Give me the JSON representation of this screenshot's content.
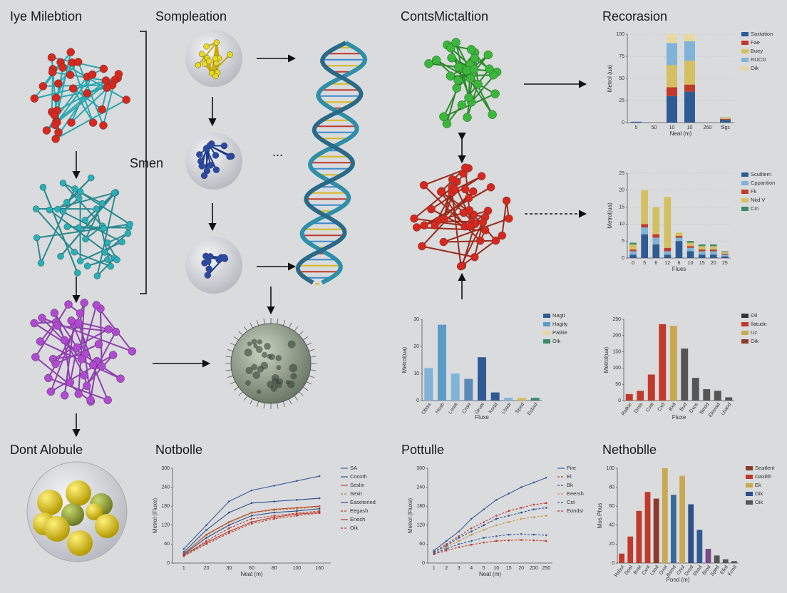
{
  "labels": {
    "panel_a": "Iye Milebtion",
    "panel_b": "Sompleation",
    "panel_c": "ContsMictaltion",
    "bracket": "Smen",
    "panel_d": "Dont Alobule",
    "ellipsis": "..."
  },
  "chart_data": [
    {
      "type": "stacked_bar",
      "title": "Recorasion",
      "y_label": "Metrol (ua)",
      "x_label": "Neal (m)",
      "categories": [
        "5",
        "50",
        "10",
        "10",
        "260",
        "5lgs"
      ],
      "ylim": [
        0,
        100
      ],
      "yticks": [
        0,
        25,
        50,
        75,
        100
      ],
      "grid": true,
      "series": [
        {
          "name": "Saxtation",
          "color": "#2e5b94",
          "values": [
            1,
            0,
            30,
            35,
            0,
            3
          ]
        },
        {
          "name": "Fae",
          "color": "#c0392b",
          "values": [
            0,
            0,
            10,
            8,
            0,
            1
          ]
        },
        {
          "name": "Buey",
          "color": "#d4c060",
          "values": [
            0,
            0,
            25,
            27,
            0,
            1
          ]
        },
        {
          "name": "RUCD",
          "color": "#7fb3d8",
          "values": [
            0,
            0,
            25,
            22,
            0,
            1
          ]
        },
        {
          "name": "Oik",
          "color": "#e8d8a0",
          "values": [
            0,
            0,
            10,
            8,
            0,
            1
          ]
        }
      ]
    },
    {
      "type": "stacked_bar",
      "y_label": "Metrol(ua)",
      "x_label": "Flues",
      "categories": [
        "0",
        "5",
        "6",
        "12",
        "6",
        "10",
        "15",
        "20",
        "25"
      ],
      "ylim": [
        0,
        25
      ],
      "yticks": [
        0,
        5,
        10,
        15,
        20,
        25
      ],
      "grid": true,
      "series": [
        {
          "name": "Scultlern",
          "color": "#2e5b94",
          "values": [
            1,
            7,
            4,
            1,
            5,
            2,
            1,
            1,
            0.5
          ]
        },
        {
          "name": "Cpparition",
          "color": "#7fb3d8",
          "values": [
            1,
            2,
            2,
            1,
            1,
            1,
            1,
            1,
            0.5
          ]
        },
        {
          "name": "Fk",
          "color": "#c0392b",
          "values": [
            0.5,
            1,
            1,
            1,
            0.5,
            0.5,
            0.5,
            0.5,
            0.3
          ]
        },
        {
          "name": "Nkd V",
          "color": "#d4c060",
          "values": [
            1.5,
            10,
            8,
            15,
            1,
            1,
            1,
            1,
            0.5
          ]
        },
        {
          "name": "Cin",
          "color": "#3a8a6a",
          "values": [
            0.5,
            0,
            0,
            0,
            0,
            0.5,
            0.5,
            0.5,
            0.2
          ]
        }
      ]
    },
    {
      "type": "bar",
      "y_label": "Metrol(ua)",
      "x_label": "Fluxe",
      "categories": [
        "Obiss",
        "Hosb",
        "Lonel",
        "Cnse",
        "Oruel",
        "Kodd",
        "Lbaol",
        "Sped",
        "Ecbsd"
      ],
      "values": [
        12,
        28,
        10,
        8,
        16,
        3,
        1,
        1,
        1
      ],
      "colors": [
        "#7fb3d8",
        "#5b9bc8",
        "#7fb3d8",
        "#5b8ab8",
        "#2e5b94",
        "#2e5b94",
        "#7fb3d8",
        "#d4c060",
        "#3a8a6a"
      ],
      "ylim": [
        0,
        30
      ],
      "yticks": [
        0,
        10,
        20,
        30
      ],
      "grid": false,
      "legend": [
        {
          "name": "Nagit",
          "color": "#2e5b94"
        },
        {
          "name": "Hagity",
          "color": "#5b9bc8"
        },
        {
          "name": "Patkle",
          "color": "#e8d8a0"
        },
        {
          "name": "Oik",
          "color": "#3a8a6a"
        }
      ]
    },
    {
      "type": "bar",
      "y_label": "Metrol(ua)",
      "x_label": "Fluxe",
      "categories": [
        "Ratkie",
        "Dmis",
        "Cvel",
        "Cxd",
        "Bxd",
        "Bud",
        "Dxos",
        "Bexid",
        "Eleviad",
        "Lbaod"
      ],
      "values": [
        20,
        30,
        80,
        235,
        230,
        160,
        70,
        35,
        30,
        10
      ],
      "colors": [
        "#c0392b",
        "#c0392b",
        "#c0392b",
        "#c0392b",
        "#c8a850",
        "#555555",
        "#555555",
        "#555555",
        "#555555",
        "#555555"
      ],
      "ylim": [
        0,
        250
      ],
      "yticks": [
        0,
        50,
        100,
        150,
        200,
        250
      ],
      "grid": false,
      "legend": [
        {
          "name": "Oil",
          "color": "#333333"
        },
        {
          "name": "Ilatudn",
          "color": "#c0392b"
        },
        {
          "name": "Uz",
          "color": "#c8a850"
        },
        {
          "name": "Oik",
          "color": "#8a3a2a"
        }
      ]
    },
    {
      "type": "line",
      "title": "Notbolle",
      "y_label": "Metrol (Fluxe)",
      "x_label": "Neat (m)",
      "categories": [
        "1",
        "20",
        "30",
        "60",
        "80",
        "100",
        "160"
      ],
      "ylim": [
        0,
        300
      ],
      "yticks": [
        0,
        60,
        120,
        180,
        240,
        300
      ],
      "grid": false,
      "series": [
        {
          "name": "SA",
          "color": "#3a5fa0",
          "dashed": false,
          "values": [
            45,
            120,
            195,
            230,
            245,
            260,
            275
          ]
        },
        {
          "name": "Cooxth",
          "color": "#2e4f8a",
          "dashed": false,
          "values": [
            35,
            105,
            160,
            190,
            195,
            200,
            205
          ]
        },
        {
          "name": "Seslin",
          "color": "#c0392b",
          "dashed": false,
          "values": [
            30,
            90,
            130,
            160,
            170,
            175,
            180
          ]
        },
        {
          "name": "Sexit",
          "color": "#b5893a",
          "dashed": true,
          "values": [
            30,
            88,
            128,
            158,
            168,
            172,
            178
          ]
        },
        {
          "name": "Easeteried",
          "color": "#2e4f8a",
          "dashed": false,
          "values": [
            28,
            80,
            120,
            150,
            160,
            165,
            172
          ]
        },
        {
          "name": "Eegash",
          "color": "#c0392b",
          "dashed": true,
          "values": [
            25,
            70,
            110,
            140,
            150,
            158,
            165
          ]
        },
        {
          "name": "Enesh",
          "color": "#c0392b",
          "dashed": false,
          "values": [
            25,
            65,
            100,
            130,
            145,
            155,
            160
          ]
        },
        {
          "name": "Oik",
          "color": "#c0392b",
          "dashed": true,
          "values": [
            22,
            60,
            95,
            125,
            140,
            150,
            158
          ]
        }
      ]
    },
    {
      "type": "line",
      "title": "Pottulle",
      "y_label": "Metrol (Fluxe)",
      "x_label": "Neat (m)",
      "categories": [
        "1",
        "2",
        "3",
        "4",
        "5",
        "10",
        "15",
        "20",
        "200",
        "250"
      ],
      "ylim": [
        0,
        300
      ],
      "yticks": [
        0,
        60,
        120,
        180,
        240,
        300
      ],
      "grid": false,
      "series": [
        {
          "name": "Fire",
          "color": "#3a5fa0",
          "dashed": false,
          "values": [
            40,
            70,
            100,
            140,
            170,
            200,
            220,
            240,
            255,
            270
          ]
        },
        {
          "name": "El",
          "color": "#c0392b",
          "dashed": true,
          "values": [
            35,
            60,
            85,
            110,
            130,
            150,
            165,
            175,
            185,
            190
          ]
        },
        {
          "name": "Bk",
          "color": "#2e4f8a",
          "dashed": true,
          "values": [
            35,
            55,
            80,
            100,
            120,
            140,
            150,
            160,
            170,
            175
          ]
        },
        {
          "name": "Eeersh",
          "color": "#c49a3a",
          "dashed": true,
          "values": [
            30,
            50,
            70,
            90,
            105,
            120,
            130,
            140,
            145,
            150
          ]
        },
        {
          "name": "Cst",
          "color": "#3a5fa0",
          "dashed": true,
          "values": [
            30,
            45,
            60,
            70,
            80,
            85,
            90,
            92,
            90,
            88
          ]
        },
        {
          "name": "Eondsr",
          "color": "#c0392b",
          "dashed": true,
          "values": [
            28,
            40,
            50,
            58,
            65,
            70,
            72,
            73,
            72,
            70
          ]
        }
      ]
    },
    {
      "type": "bar",
      "title": "Nethoblle",
      "y_label": "Mos Phus",
      "x_label": "Pond (m)",
      "categories": [
        "Rsbut",
        "Doel",
        "Bxst",
        "Cxnt",
        "Lsod",
        "Oxst",
        "Bsmd",
        "Cnul",
        "Dxsd",
        "Ekod",
        "Brod",
        "Sped",
        "Elkd",
        "Ecnd"
      ],
      "values": [
        10,
        28,
        55,
        75,
        68,
        100,
        72,
        92,
        62,
        35,
        15,
        8,
        4,
        2
      ],
      "colors": [
        "#c0392b",
        "#c0392b",
        "#c0392b",
        "#c0392b",
        "#8a3a2a",
        "#c8a850",
        "#3a6a9a",
        "#c8a850",
        "#2e4f8a",
        "#2e5b94",
        "#7a4a8a",
        "#555555",
        "#555555",
        "#555555"
      ],
      "ylim": [
        0,
        100
      ],
      "yticks": [
        0,
        20,
        40,
        60,
        80,
        100
      ],
      "grid": false,
      "legend": [
        {
          "name": "Seatlent",
          "color": "#8a3a2a"
        },
        {
          "name": "Oaxlith",
          "color": "#c0392b"
        },
        {
          "name": "Ek",
          "color": "#c8a850"
        },
        {
          "name": "Oik",
          "color": "#2e4f8a"
        },
        {
          "name": "Oik",
          "color": "#555555"
        }
      ]
    }
  ]
}
